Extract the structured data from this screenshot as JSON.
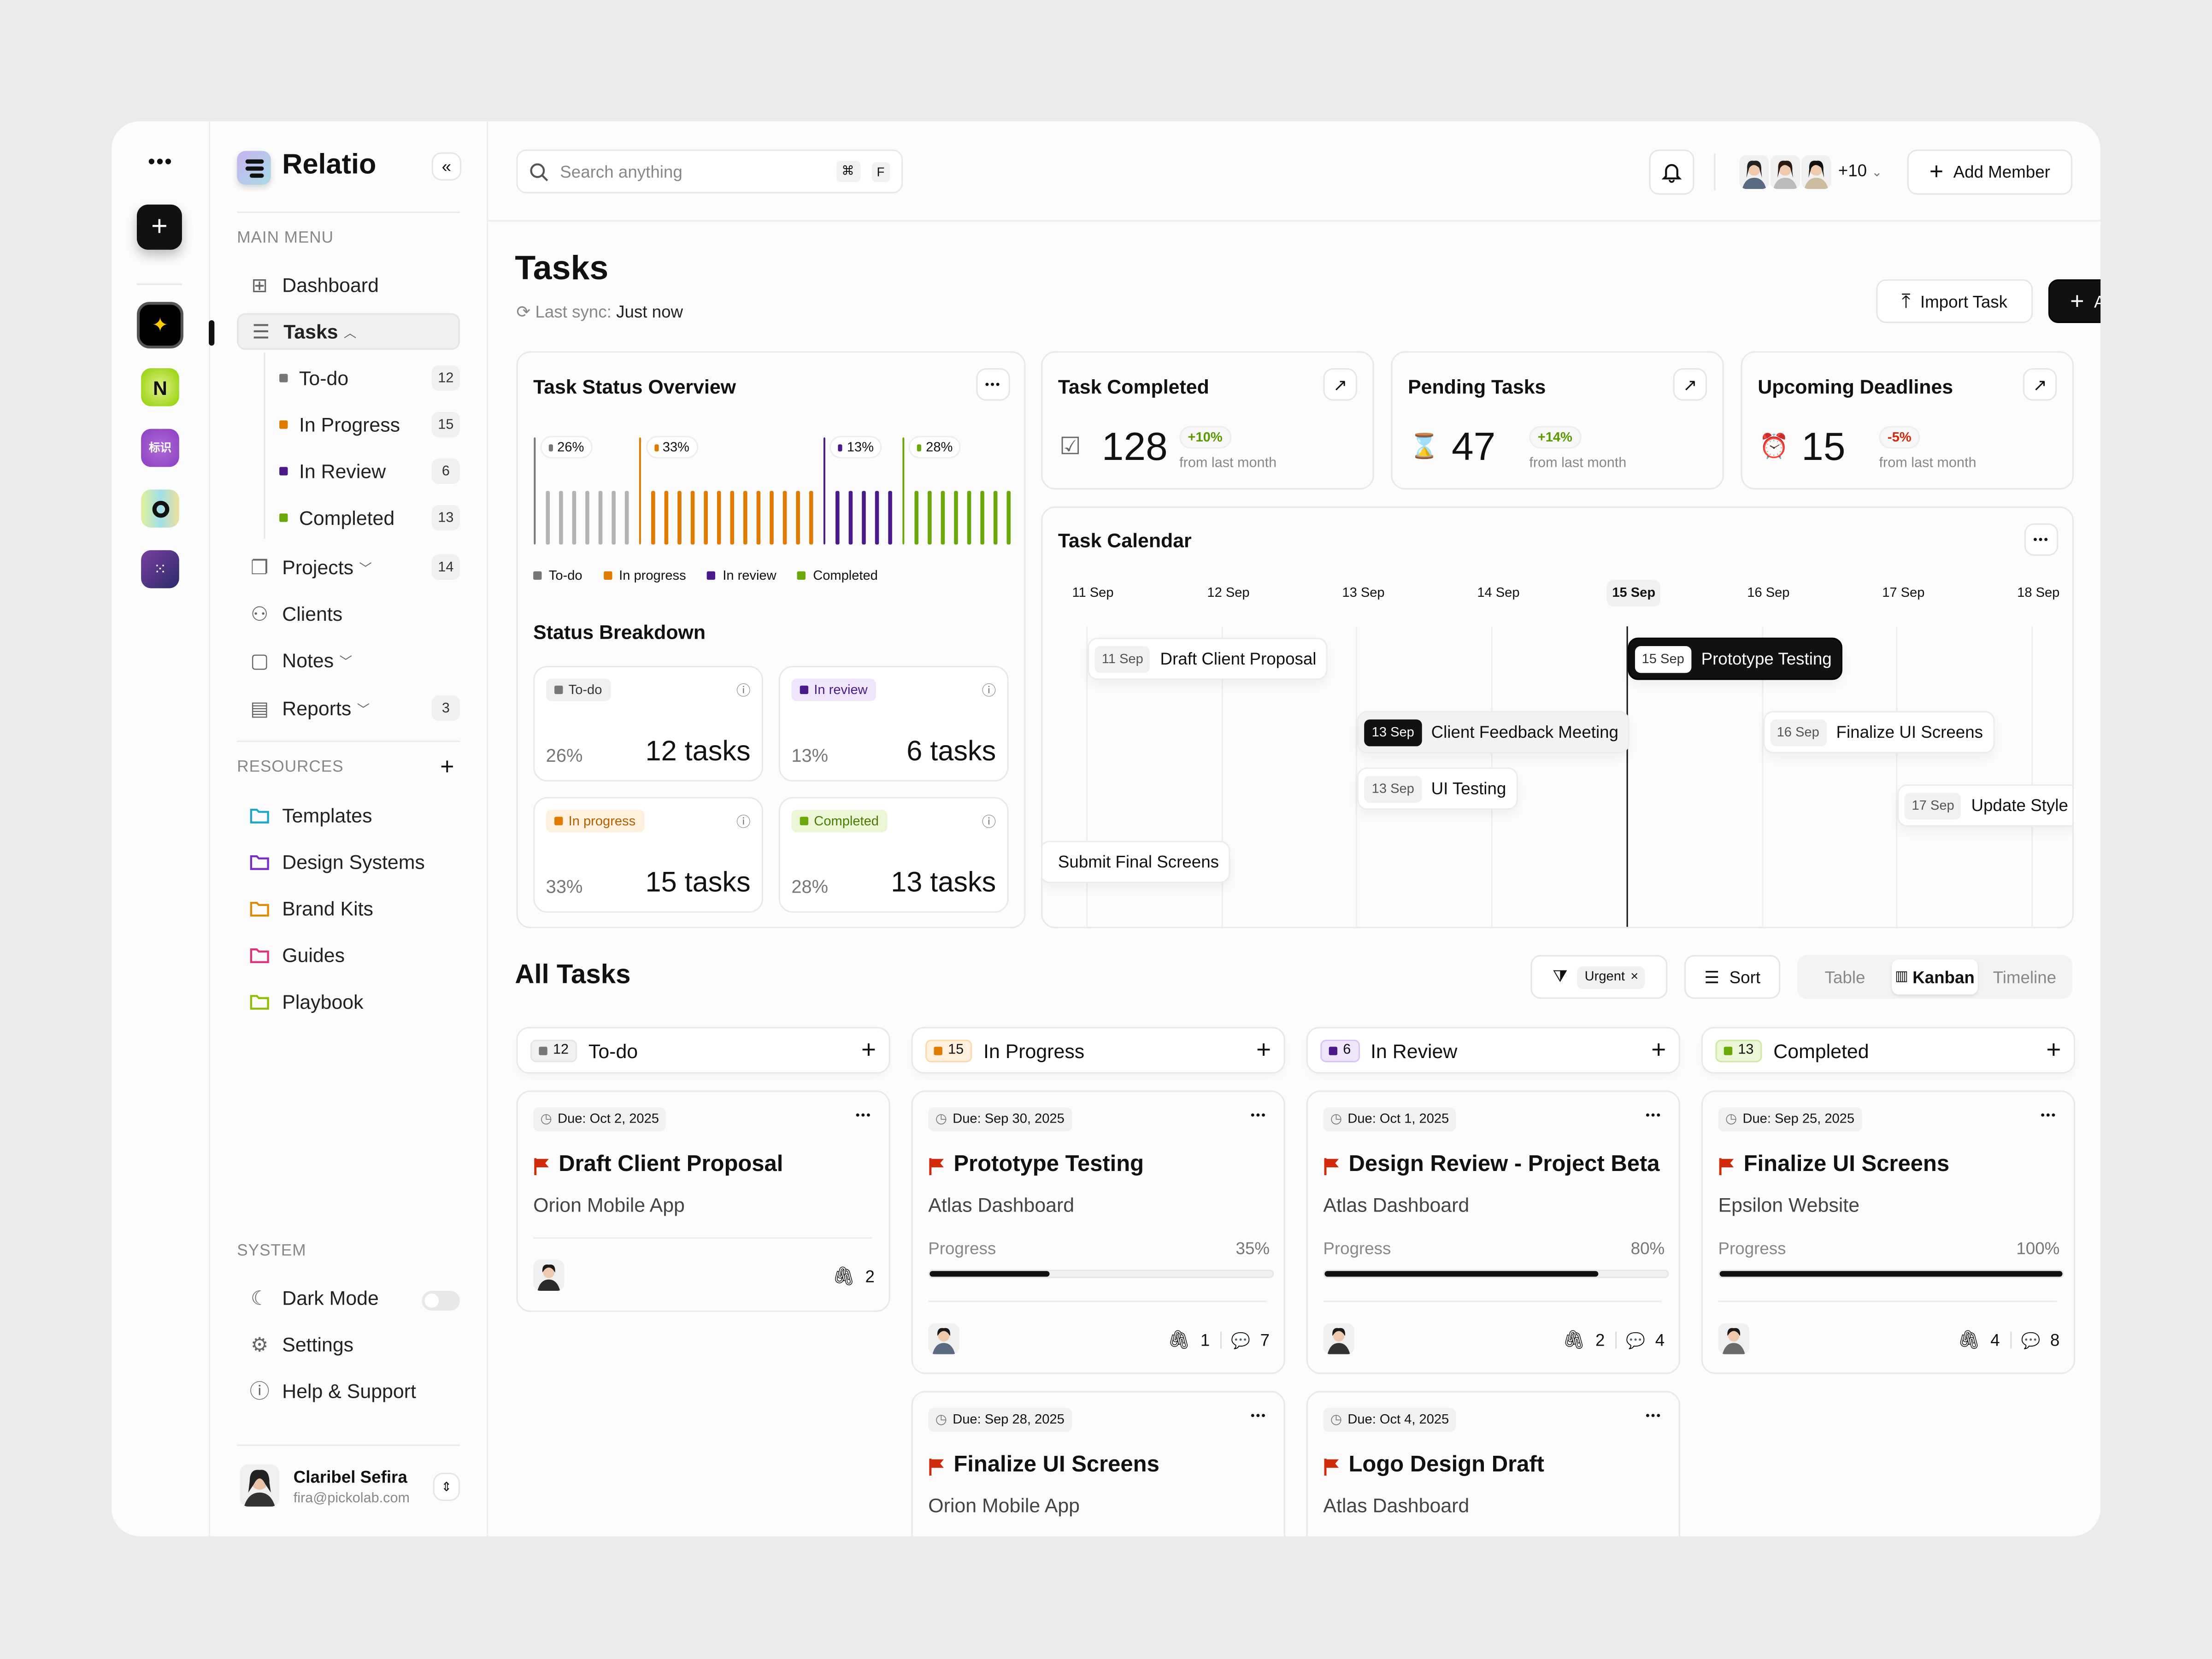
{
  "app": {
    "name": "Relatio"
  },
  "sidebar": {
    "main_menu_label": "MAIN MENU",
    "items": [
      {
        "label": "Dashboard",
        "icon": "grid-icon"
      },
      {
        "label": "Tasks",
        "icon": "checklist-icon"
      },
      {
        "label": "Projects",
        "icon": "folders-icon",
        "count": "14"
      },
      {
        "label": "Clients",
        "icon": "users-icon"
      },
      {
        "label": "Notes",
        "icon": "note-icon"
      },
      {
        "label": "Reports",
        "icon": "clipboard-icon",
        "count": "3"
      }
    ],
    "task_subitems": [
      {
        "label": "To-do",
        "count": "12",
        "color": "#777777"
      },
      {
        "label": "In Progress",
        "count": "15",
        "color": "#e07b00"
      },
      {
        "label": "In Review",
        "count": "6",
        "color": "#4a1a8c"
      },
      {
        "label": "Completed",
        "count": "13",
        "color": "#6aa80a"
      }
    ],
    "resources_label": "RESOURCES",
    "resources": [
      {
        "label": "Templates",
        "color": "#1aa7c9"
      },
      {
        "label": "Design Systems",
        "color": "#7a2bc9"
      },
      {
        "label": "Brand Kits",
        "color": "#e08a00"
      },
      {
        "label": "Guides",
        "color": "#e0307a"
      },
      {
        "label": "Playbook",
        "color": "#8cc000"
      }
    ],
    "system_label": "SYSTEM",
    "system": [
      {
        "label": "Dark Mode",
        "icon": "moon-icon"
      },
      {
        "label": "Settings",
        "icon": "gear-icon"
      },
      {
        "label": "Help & Support",
        "icon": "help-icon"
      }
    ],
    "dark_mode_on": false,
    "user": {
      "name": "Claribel Sefira",
      "email": "fira@pickolab.com"
    }
  },
  "topbar": {
    "search_placeholder": "Search anything",
    "shortcut": [
      "⌘",
      "F"
    ],
    "members_more": "+10",
    "add_member": "Add Member"
  },
  "page": {
    "title": "Tasks",
    "sync_label": "Last sync:",
    "sync_value": "Just now",
    "import": "Import Task",
    "add": "Add Task"
  },
  "overview": {
    "title": "Task Status Overview",
    "breakdown_title": "Status Breakdown",
    "breakdown": [
      {
        "label": "To-do",
        "pct": "26%",
        "tasks": "12 tasks",
        "bg": "#f0f0f0",
        "fg": "#333",
        "dot": "#777777"
      },
      {
        "label": "In review",
        "pct": "13%",
        "tasks": "6 tasks",
        "bg": "#efe6fb",
        "fg": "#4a1a8c",
        "dot": "#4a1a8c"
      },
      {
        "label": "In progress",
        "pct": "33%",
        "tasks": "15 tasks",
        "bg": "#fff1dd",
        "fg": "#b06000",
        "dot": "#e07b00"
      },
      {
        "label": "Completed",
        "pct": "28%",
        "tasks": "13 tasks",
        "bg": "#eaf6d6",
        "fg": "#4a7a00",
        "dot": "#6aa80a"
      }
    ]
  },
  "chart_data": {
    "type": "bar",
    "categories": [
      "To-do",
      "In progress",
      "In review",
      "Completed"
    ],
    "values": [
      26,
      33,
      13,
      28
    ],
    "labels": [
      "26%",
      "33%",
      "13%",
      "28%"
    ],
    "colors": [
      "#b3b3b3",
      "#e07b00",
      "#4a1a8c",
      "#6aa80a"
    ],
    "legend_colors": [
      "#777777",
      "#e07b00",
      "#4a1a8c",
      "#6aa80a"
    ],
    "legend": "bottom-left",
    "grid": false
  },
  "stats": [
    {
      "title": "Task Completed",
      "value": "128",
      "change": "+10%",
      "change_color": "#5a9a00",
      "note": "from last month",
      "icon": "checkbox-icon"
    },
    {
      "title": "Pending Tasks",
      "value": "47",
      "change": "+14%",
      "change_color": "#5a9a00",
      "note": "from last month",
      "icon": "hourglass-icon"
    },
    {
      "title": "Upcoming Deadlines",
      "value": "15",
      "change": "-5%",
      "change_color": "#d12a0a",
      "note": "from last month",
      "icon": "alarm-icon"
    }
  ],
  "calendar": {
    "title": "Task Calendar",
    "days": [
      "11 Sep",
      "12 Sep",
      "13 Sep",
      "14 Sep",
      "15 Sep",
      "16 Sep",
      "17 Sep",
      "18 Sep"
    ],
    "today": "15 Sep",
    "events": [
      {
        "date": "11 Sep",
        "title": "Draft Client Proposal",
        "style": "normal"
      },
      {
        "date": "15 Sep",
        "title": "Prototype Testing",
        "style": "dark"
      },
      {
        "date": "13 Sep",
        "title": "Client Feedback Meeting",
        "style": "highlight"
      },
      {
        "date": "16 Sep",
        "title": "Finalize UI Screens",
        "style": "normal"
      },
      {
        "date": "13 Sep",
        "title": "UI Testing",
        "style": "normal"
      },
      {
        "date": "17 Sep",
        "title": "Update Style",
        "style": "normal"
      },
      {
        "date": "",
        "title": "Submit Final Screens",
        "style": "normal"
      }
    ]
  },
  "all_tasks": {
    "title": "All Tasks",
    "filter": "Urgent",
    "sort": "Sort",
    "views": [
      "Table",
      "Kanban",
      "Timeline"
    ],
    "active_view": "Kanban",
    "progress_label": "Progress",
    "columns": [
      {
        "count": "12",
        "label": "To-do",
        "color": "#777777",
        "bg": "#f1f1f1",
        "border": "#e6e6e6",
        "cards": [
          {
            "due": "Due: Oct 2, 2025",
            "title": "Draft Client Proposal",
            "project": "Orion Mobile App",
            "attachments": "2"
          }
        ]
      },
      {
        "count": "15",
        "label": "In Progress",
        "color": "#e07b00",
        "bg": "#fff1dd",
        "border": "#fbd9a8",
        "cards": [
          {
            "due": "Due: Sep 30, 2025",
            "title": "Prototype Testing",
            "project": "Atlas Dashboard",
            "progress": "35%",
            "attachments": "1",
            "comments": "7"
          },
          {
            "due": "Due: Sep 28, 2025",
            "title": "Finalize UI Screens",
            "project": "Orion Mobile App"
          }
        ]
      },
      {
        "count": "6",
        "label": "In Review",
        "color": "#4a1a8c",
        "bg": "#efe6fb",
        "border": "#d9c4f5",
        "cards": [
          {
            "due": "Due: Oct 1, 2025",
            "title": "Design Review - Project Beta",
            "project": "Atlas Dashboard",
            "progress": "80%",
            "attachments": "2",
            "comments": "4"
          },
          {
            "due": "Due: Oct 4, 2025",
            "title": "Logo Design Draft",
            "project": "Atlas Dashboard"
          }
        ]
      },
      {
        "count": "13",
        "label": "Completed",
        "color": "#6aa80a",
        "bg": "#eaf6d6",
        "border": "#cfe9a6",
        "cards": [
          {
            "due": "Due: Sep 25, 2025",
            "title": "Finalize UI Screens",
            "project": "Epsilon Website",
            "progress": "100%",
            "attachments": "4",
            "comments": "8"
          }
        ]
      }
    ]
  }
}
